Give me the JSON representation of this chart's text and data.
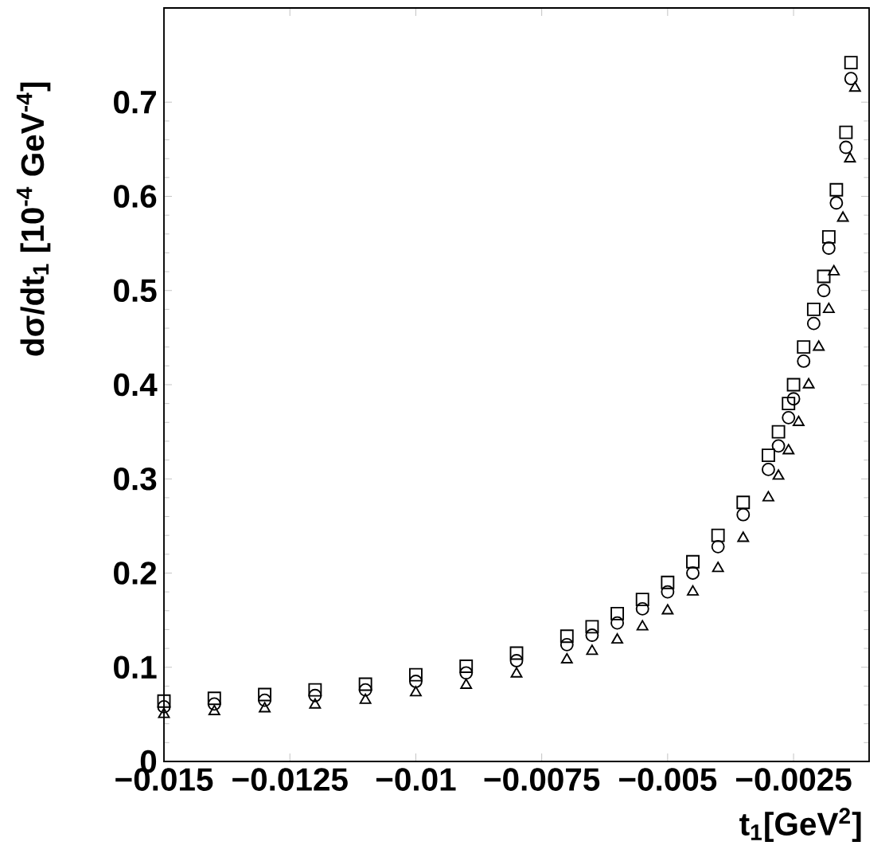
{
  "chart_data": {
    "type": "scatter",
    "xlabel": "t$_{1}$[GeV$^{2}$]",
    "ylabel": "dσ/dt$_{1}$ [10$^{-4}$ GeV$^{-4}$]",
    "xlim": [
      -0.015,
      -0.001
    ],
    "ylim": [
      0,
      0.8
    ],
    "xticks": [
      {
        "value": -0.015,
        "label": "−0.015"
      },
      {
        "value": -0.0125,
        "label": "−0.0125"
      },
      {
        "value": -0.01,
        "label": "−0.01"
      },
      {
        "value": -0.0075,
        "label": "−0.0075"
      },
      {
        "value": -0.005,
        "label": "−0.005"
      },
      {
        "value": -0.0025,
        "label": "−0.0025"
      }
    ],
    "yticks": [
      0,
      0.1,
      0.2,
      0.3,
      0.4,
      0.5,
      0.6,
      0.7
    ],
    "grid": false,
    "series": [
      {
        "color": "#000000",
        "marker": "square",
        "x": [
          -0.015,
          -0.014,
          -0.013,
          -0.012,
          -0.011,
          -0.01,
          -0.009,
          -0.008,
          -0.007,
          -0.0065,
          -0.006,
          -0.0055,
          -0.005,
          -0.0045,
          -0.004,
          -0.0035,
          -0.003,
          -0.0028,
          -0.0026,
          -0.0025,
          -0.0023,
          -0.0021,
          -0.0019,
          -0.0018,
          -0.00165,
          -0.00146,
          -0.00136
        ],
        "values": [
          0.064,
          0.067,
          0.071,
          0.076,
          0.082,
          0.092,
          0.101,
          0.115,
          0.133,
          0.143,
          0.157,
          0.172,
          0.19,
          0.212,
          0.24,
          0.275,
          0.325,
          0.35,
          0.38,
          0.4,
          0.44,
          0.48,
          0.515,
          0.557,
          0.607,
          0.668,
          0.742
        ]
      },
      {
        "color": "#000000",
        "marker": "circle",
        "x": [
          -0.015,
          -0.014,
          -0.013,
          -0.012,
          -0.011,
          -0.01,
          -0.009,
          -0.008,
          -0.007,
          -0.0065,
          -0.006,
          -0.0055,
          -0.005,
          -0.0045,
          -0.004,
          -0.0035,
          -0.003,
          -0.0028,
          -0.0026,
          -0.0025,
          -0.0023,
          -0.0021,
          -0.0019,
          -0.0018,
          -0.00165,
          -0.00146,
          -0.00136
        ],
        "values": [
          0.058,
          0.061,
          0.065,
          0.07,
          0.076,
          0.085,
          0.094,
          0.107,
          0.124,
          0.134,
          0.147,
          0.162,
          0.18,
          0.2,
          0.228,
          0.262,
          0.31,
          0.335,
          0.365,
          0.385,
          0.425,
          0.465,
          0.5,
          0.545,
          0.593,
          0.652,
          0.725
        ]
      },
      {
        "color": "#000000",
        "marker": "triangle",
        "x": [
          -0.015,
          -0.014,
          -0.013,
          -0.012,
          -0.011,
          -0.01,
          -0.009,
          -0.008,
          -0.007,
          -0.0065,
          -0.006,
          -0.0055,
          -0.005,
          -0.0045,
          -0.004,
          -0.0035,
          -0.003,
          -0.0028,
          -0.0026,
          -0.0024,
          -0.0022,
          -0.002,
          -0.0018,
          -0.0017,
          -0.00152,
          -0.00138,
          -0.00128
        ],
        "values": [
          0.05,
          0.053,
          0.056,
          0.06,
          0.065,
          0.073,
          0.081,
          0.093,
          0.108,
          0.117,
          0.129,
          0.143,
          0.16,
          0.18,
          0.205,
          0.237,
          0.28,
          0.303,
          0.33,
          0.36,
          0.4,
          0.44,
          0.48,
          0.52,
          0.577,
          0.64,
          0.715
        ]
      }
    ]
  }
}
